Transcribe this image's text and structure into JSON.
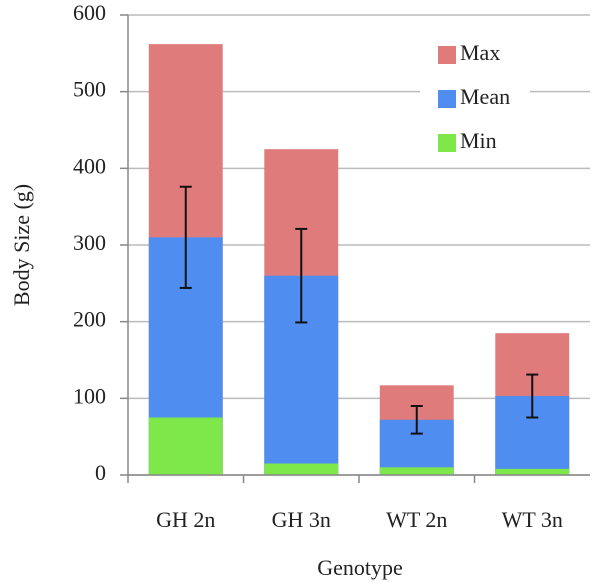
{
  "chart_data": {
    "type": "bar",
    "mode": "overlay",
    "x_label": "Genotype",
    "y_label": "Body Size (g)",
    "categories": [
      "GH 2n",
      "GH 3n",
      "WT 2n",
      "WT 3n"
    ],
    "series": [
      {
        "name": "Max",
        "color": "#e07b7b",
        "values": [
          562,
          425,
          117,
          185
        ]
      },
      {
        "name": "Mean",
        "color": "#4f8ef0",
        "values": [
          310,
          260,
          72,
          103
        ],
        "errors": [
          66,
          61,
          18,
          28
        ]
      },
      {
        "name": "Min",
        "color": "#7ee84a",
        "values": [
          75,
          15,
          10,
          8
        ]
      }
    ],
    "ylim": [
      0,
      600
    ],
    "yticks": [
      0,
      100,
      200,
      300,
      400,
      500,
      600
    ],
    "grid": true,
    "legend": "upper right"
  }
}
